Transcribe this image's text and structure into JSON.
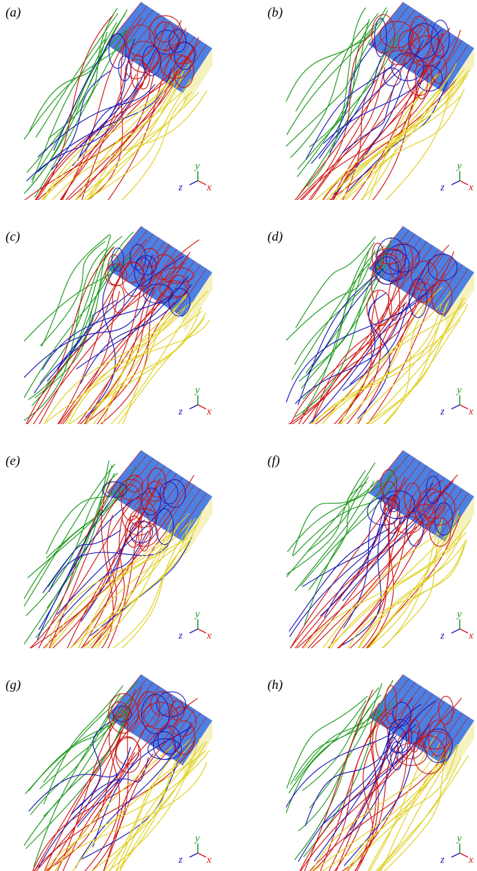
{
  "panels": [
    {
      "label": "(a)",
      "axes": {
        "x": "x",
        "y": "y",
        "z": "z"
      }
    },
    {
      "label": "(b)",
      "axes": {
        "x": "x",
        "y": "y",
        "z": "z"
      }
    },
    {
      "label": "(c)",
      "axes": {
        "x": "x",
        "y": "y",
        "z": "z"
      }
    },
    {
      "label": "(d)",
      "axes": {
        "x": "x",
        "y": "y",
        "z": "z"
      }
    },
    {
      "label": "(e)",
      "axes": {
        "x": "x",
        "y": "y",
        "z": "z"
      }
    },
    {
      "label": "(f)",
      "axes": {
        "x": "x",
        "y": "y",
        "z": "z"
      }
    },
    {
      "label": "(g)",
      "axes": {
        "x": "x",
        "y": "y",
        "z": "z"
      }
    },
    {
      "label": "(h)",
      "axes": {
        "x": "x",
        "y": "y",
        "z": "z"
      }
    }
  ]
}
